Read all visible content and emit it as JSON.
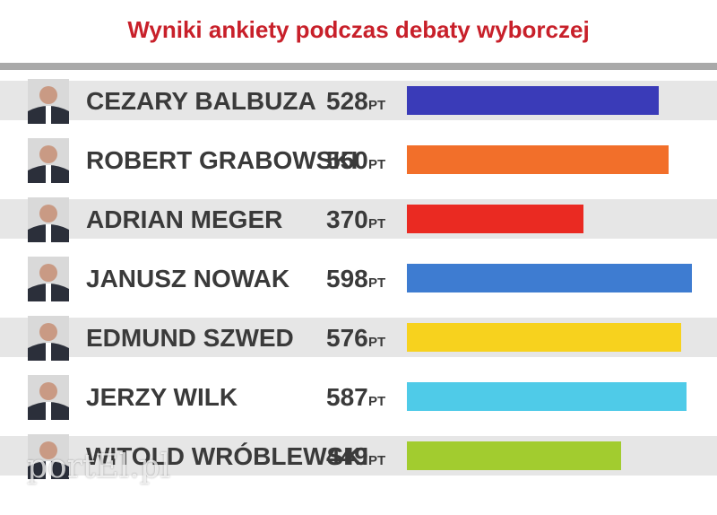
{
  "chart_data": {
    "type": "bar",
    "orientation": "horizontal",
    "title": "Wyniki ankiety podczas debaty wyborczej",
    "unit": "PT",
    "categories": [
      "CEZARY BALBUZA",
      "ROBERT GRABOWSKI",
      "ADRIAN MEGER",
      "JANUSZ NOWAK",
      "EDMUND SZWED",
      "JERZY WILK",
      "WITOLD WRÓBLEWSKI"
    ],
    "values": [
      528,
      550,
      370,
      598,
      576,
      587,
      449
    ],
    "colors": [
      "#3a3bb8",
      "#f26f2a",
      "#ea2a22",
      "#3e7cd1",
      "#f7d21e",
      "#4fcbe8",
      "#a2cc2f"
    ],
    "grid": false,
    "legend": "none"
  },
  "watermark": "portEl.pl"
}
